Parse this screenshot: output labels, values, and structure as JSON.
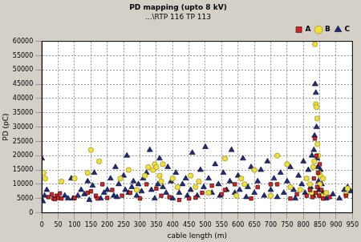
{
  "chart_data": {
    "type": "scatter",
    "title": "PD mapping (upto 8 kV)",
    "subtitle": "...\\RTP 116 TP 113",
    "x_label": "cable length (m)",
    "y_label": "PD (pC)",
    "xlim": [
      0,
      950
    ],
    "xticks": [
      0,
      50,
      100,
      150,
      200,
      250,
      300,
      350,
      400,
      450,
      500,
      550,
      600,
      650,
      700,
      750,
      800,
      850,
      900,
      950
    ],
    "ylim": [
      0,
      60000
    ],
    "yticks": [
      0,
      5000,
      10000,
      15000,
      20000,
      25000,
      30000,
      35000,
      40000,
      45000,
      50000,
      55000,
      60000
    ],
    "grid": true,
    "legend": "top right",
    "series": [
      {
        "name": "A",
        "color": "#e02020",
        "marker": "square",
        "values": [
          [
            20,
            5500
          ],
          [
            30,
            6500
          ],
          [
            35,
            5000
          ],
          [
            40,
            4800
          ],
          [
            45,
            6000
          ],
          [
            50,
            5200
          ],
          [
            55,
            6800
          ],
          [
            60,
            5000
          ],
          [
            100,
            5200
          ],
          [
            140,
            7000
          ],
          [
            150,
            7500
          ],
          [
            165,
            6000
          ],
          [
            170,
            5000
          ],
          [
            185,
            10000
          ],
          [
            200,
            5200
          ],
          [
            215,
            8000
          ],
          [
            245,
            6000
          ],
          [
            270,
            7000
          ],
          [
            300,
            5000
          ],
          [
            320,
            10000
          ],
          [
            350,
            8500
          ],
          [
            365,
            6000
          ],
          [
            390,
            5500
          ],
          [
            420,
            4500
          ],
          [
            450,
            5000
          ],
          [
            470,
            5300
          ],
          [
            490,
            7000
          ],
          [
            520,
            9500
          ],
          [
            550,
            6500
          ],
          [
            560,
            8000
          ],
          [
            590,
            10000
          ],
          [
            640,
            5000
          ],
          [
            660,
            9000
          ],
          [
            700,
            10000
          ],
          [
            720,
            10000
          ],
          [
            760,
            5000
          ],
          [
            780,
            6500
          ],
          [
            810,
            6000
          ],
          [
            820,
            8000
          ],
          [
            828,
            5500
          ],
          [
            832,
            12000
          ],
          [
            835,
            26000
          ],
          [
            838,
            7000
          ],
          [
            840,
            20000
          ],
          [
            842,
            9000
          ],
          [
            845,
            14000
          ],
          [
            848,
            6000
          ],
          [
            850,
            17000
          ],
          [
            855,
            8000
          ],
          [
            860,
            5000
          ],
          [
            880,
            5500
          ],
          [
            930,
            6000
          ]
        ]
      },
      {
        "name": "B",
        "color": "#f2e03a",
        "marker": "circle",
        "values": [
          [
            5,
            14000
          ],
          [
            10,
            12000
          ],
          [
            60,
            11000
          ],
          [
            100,
            12000
          ],
          [
            140,
            14000
          ],
          [
            150,
            22000
          ],
          [
            175,
            18000
          ],
          [
            240,
            12000
          ],
          [
            265,
            15000
          ],
          [
            290,
            8000
          ],
          [
            315,
            13000
          ],
          [
            325,
            16000
          ],
          [
            340,
            15000
          ],
          [
            345,
            17000
          ],
          [
            350,
            16000
          ],
          [
            360,
            13000
          ],
          [
            365,
            11000
          ],
          [
            370,
            17000
          ],
          [
            400,
            12000
          ],
          [
            415,
            9000
          ],
          [
            455,
            13000
          ],
          [
            470,
            9000
          ],
          [
            480,
            11000
          ],
          [
            510,
            7000
          ],
          [
            560,
            19000
          ],
          [
            595,
            6000
          ],
          [
            610,
            12000
          ],
          [
            620,
            10000
          ],
          [
            650,
            15000
          ],
          [
            700,
            6000
          ],
          [
            720,
            20000
          ],
          [
            750,
            17000
          ],
          [
            760,
            9000
          ],
          [
            790,
            8000
          ],
          [
            810,
            12000
          ],
          [
            820,
            10000
          ],
          [
            825,
            7000
          ],
          [
            830,
            16000
          ],
          [
            833,
            18000
          ],
          [
            835,
            59000
          ],
          [
            838,
            38000
          ],
          [
            840,
            37000
          ],
          [
            842,
            33000
          ],
          [
            843,
            24000
          ],
          [
            845,
            20000
          ],
          [
            847,
            14000
          ],
          [
            850,
            10000
          ],
          [
            852,
            13000
          ],
          [
            855,
            6000
          ],
          [
            860,
            12000
          ],
          [
            870,
            7000
          ],
          [
            930,
            6500
          ],
          [
            935,
            8500
          ]
        ]
      },
      {
        "name": "C",
        "color": "#1c2c8c",
        "marker": "triangle",
        "values": [
          [
            0,
            19000
          ],
          [
            3,
            4000
          ],
          [
            8,
            6000
          ],
          [
            15,
            8000
          ],
          [
            70,
            6000
          ],
          [
            80,
            5000
          ],
          [
            90,
            12000
          ],
          [
            95,
            5000
          ],
          [
            110,
            6000
          ],
          [
            120,
            8000
          ],
          [
            130,
            6500
          ],
          [
            140,
            11000
          ],
          [
            145,
            4500
          ],
          [
            155,
            9500
          ],
          [
            160,
            14000
          ],
          [
            180,
            5000
          ],
          [
            190,
            7000
          ],
          [
            200,
            8000
          ],
          [
            210,
            12000
          ],
          [
            220,
            6000
          ],
          [
            225,
            16000
          ],
          [
            230,
            5500
          ],
          [
            235,
            10000
          ],
          [
            250,
            13000
          ],
          [
            255,
            8000
          ],
          [
            260,
            20000
          ],
          [
            265,
            7000
          ],
          [
            275,
            9000
          ],
          [
            280,
            11000
          ],
          [
            290,
            6000
          ],
          [
            295,
            10000
          ],
          [
            305,
            7500
          ],
          [
            310,
            12000
          ],
          [
            320,
            14000
          ],
          [
            330,
            22000
          ],
          [
            335,
            8000
          ],
          [
            345,
            5000
          ],
          [
            355,
            10000
          ],
          [
            360,
            19000
          ],
          [
            370,
            9000
          ],
          [
            380,
            7000
          ],
          [
            385,
            16000
          ],
          [
            395,
            11000
          ],
          [
            400,
            5000
          ],
          [
            410,
            14000
          ],
          [
            420,
            7000
          ],
          [
            430,
            10000
          ],
          [
            440,
            12000
          ],
          [
            445,
            6000
          ],
          [
            455,
            8000
          ],
          [
            460,
            21000
          ],
          [
            475,
            6000
          ],
          [
            485,
            15000
          ],
          [
            495,
            9000
          ],
          [
            500,
            23000
          ],
          [
            510,
            12000
          ],
          [
            520,
            7000
          ],
          [
            530,
            17000
          ],
          [
            540,
            10000
          ],
          [
            545,
            6000
          ],
          [
            555,
            14000
          ],
          [
            565,
            8000
          ],
          [
            575,
            11000
          ],
          [
            580,
            22000
          ],
          [
            590,
            7000
          ],
          [
            600,
            13000
          ],
          [
            605,
            8000
          ],
          [
            615,
            19000
          ],
          [
            625,
            5500
          ],
          [
            630,
            9000
          ],
          [
            640,
            16000
          ],
          [
            650,
            7000
          ],
          [
            660,
            11000
          ],
          [
            670,
            15000
          ],
          [
            680,
            6000
          ],
          [
            690,
            18000
          ],
          [
            700,
            8000
          ],
          [
            710,
            12000
          ],
          [
            720,
            5500
          ],
          [
            730,
            14000
          ],
          [
            740,
            7000
          ],
          [
            750,
            11000
          ],
          [
            760,
            16000
          ],
          [
            770,
            8000
          ],
          [
            775,
            5000
          ],
          [
            785,
            13000
          ],
          [
            795,
            10000
          ],
          [
            800,
            18000
          ],
          [
            805,
            7000
          ],
          [
            815,
            15000
          ],
          [
            822,
            9000
          ],
          [
            826,
            20000
          ],
          [
            830,
            6000
          ],
          [
            832,
            22000
          ],
          [
            834,
            27000
          ],
          [
            836,
            45000
          ],
          [
            838,
            42000
          ],
          [
            840,
            30000
          ],
          [
            842,
            19000
          ],
          [
            844,
            16000
          ],
          [
            846,
            11000
          ],
          [
            848,
            8000
          ],
          [
            852,
            15000
          ],
          [
            856,
            10000
          ],
          [
            860,
            7000
          ],
          [
            870,
            5000
          ],
          [
            890,
            6500
          ],
          [
            910,
            5000
          ],
          [
            925,
            8000
          ],
          [
            935,
            9000
          ],
          [
            945,
            7500
          ]
        ]
      }
    ]
  }
}
